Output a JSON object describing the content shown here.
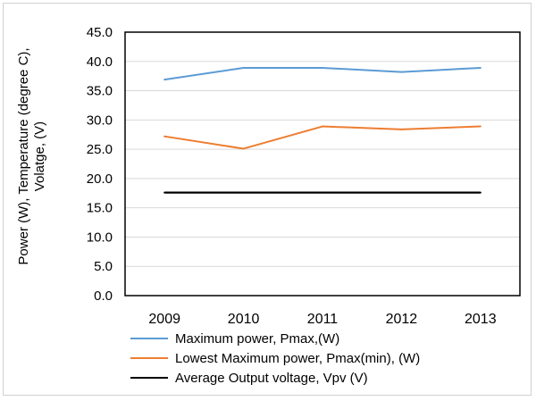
{
  "chart_data": {
    "type": "line",
    "categories": [
      "2009",
      "2010",
      "2011",
      "2012",
      "2013"
    ],
    "ylabel_lines": [
      "Power (W), Temperature (degree C),",
      "Volatge, (V)"
    ],
    "ylim": [
      0,
      45
    ],
    "yticks": [
      "0.0",
      "5.0",
      "10.0",
      "15.0",
      "20.0",
      "25.0",
      "30.0",
      "35.0",
      "40.0",
      "45.0"
    ],
    "grid": true,
    "legend_position": "bottom",
    "series": [
      {
        "name": "Maximum power, Pmax,(W)",
        "values": [
          36.9,
          38.9,
          38.9,
          38.2,
          38.9
        ],
        "color": "#5b9bd5"
      },
      {
        "name": "Lowest Maximum power, Pmax(min), (W)",
        "values": [
          27.2,
          25.1,
          28.9,
          28.4,
          28.9
        ],
        "color": "#ed7d31"
      },
      {
        "name": "Average Output voltage, Vpv (V)",
        "values": [
          17.6,
          17.6,
          17.6,
          17.6,
          17.6
        ],
        "color": "#000000"
      }
    ]
  }
}
